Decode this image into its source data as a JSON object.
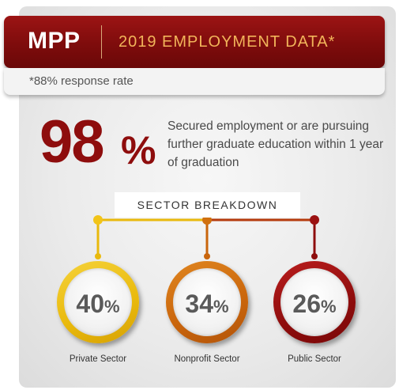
{
  "header": {
    "program": "MPP",
    "title": "2019 EMPLOYMENT DATA*",
    "response_note": "*88% response rate"
  },
  "headline": {
    "value": "98",
    "unit": "%",
    "description": "Secured employment or are pursuing further graduate education within 1 year of graduation"
  },
  "breakdown": {
    "label": "SECTOR BREAKDOWN",
    "sectors": [
      {
        "value": "40",
        "unit": "%",
        "name": "Private Sector",
        "color": "#e9b90c"
      },
      {
        "value": "34",
        "unit": "%",
        "name": "Nonprofit Sector",
        "color": "#c9650c"
      },
      {
        "value": "26",
        "unit": "%",
        "name": "Public Sector",
        "color": "#8e0d0d"
      }
    ]
  },
  "colors": {
    "brand_red": "#8e0d0d",
    "header_gold": "#f1b45a"
  }
}
